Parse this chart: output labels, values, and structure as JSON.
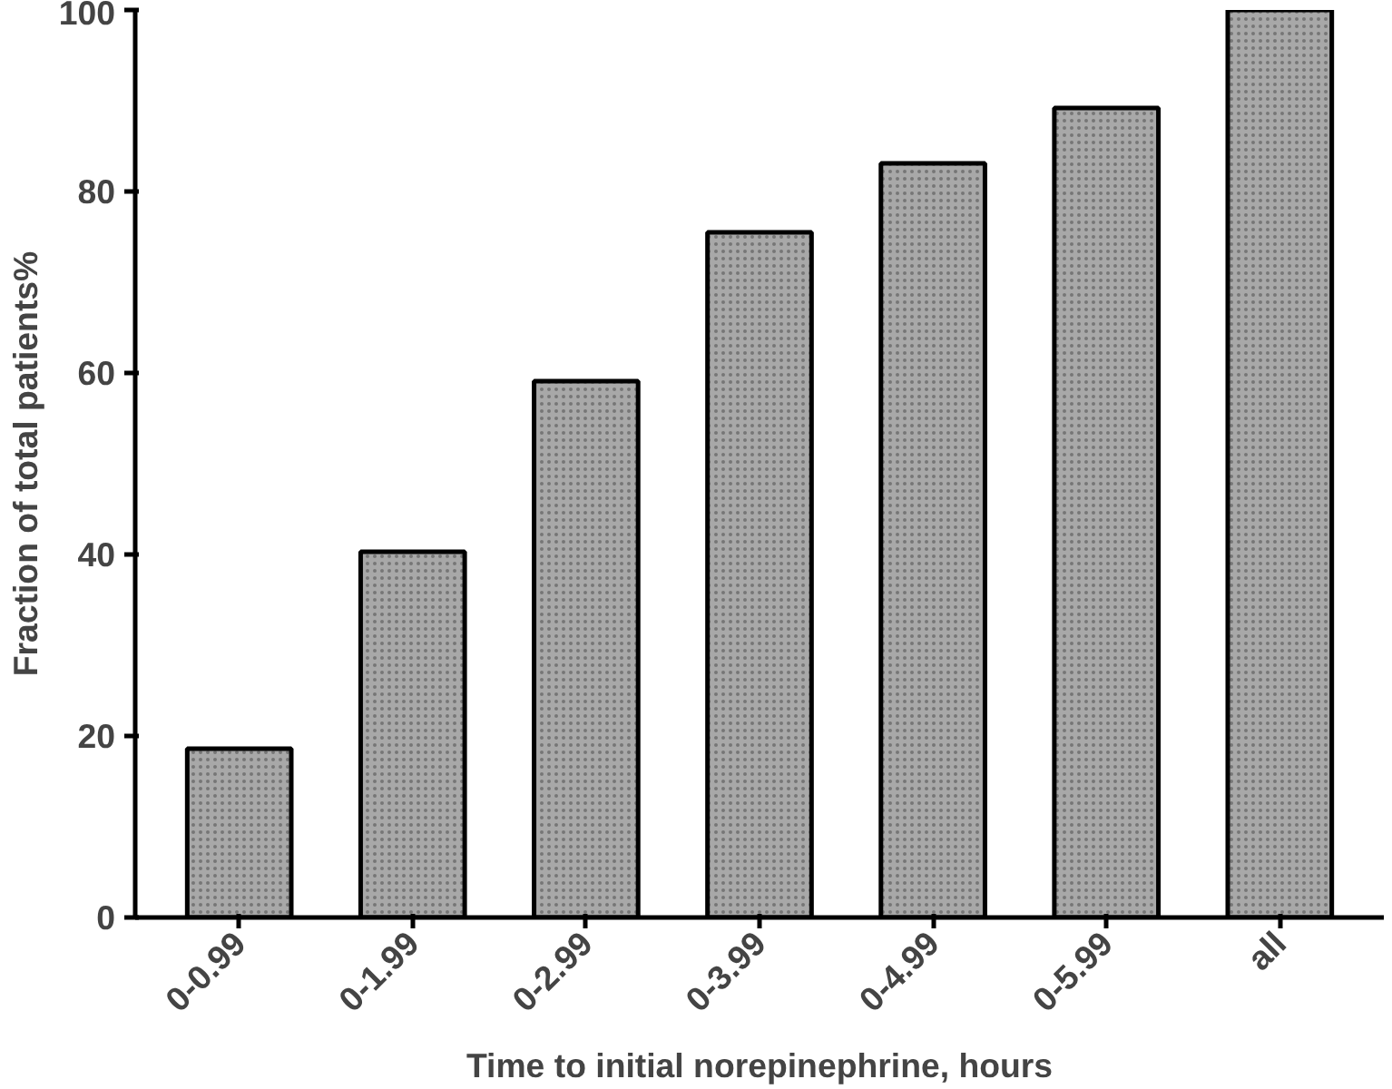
{
  "chart_data": {
    "type": "bar",
    "xlabel": "Time to initial norepinephrine, hours",
    "ylabel": "Fraction of total patients%",
    "categories": [
      "0-0.99",
      "0-1.99",
      "0-2.99",
      "0-3.99",
      "0-4.99",
      "0-5.99",
      "all"
    ],
    "values": [
      18.6,
      40.3,
      59.1,
      75.5,
      83.1,
      89.2,
      100
    ],
    "color": "#a8a8a8",
    "ylim": [
      0,
      100
    ],
    "yticks": [
      0,
      20,
      40,
      60,
      80,
      100
    ],
    "grid": false
  }
}
